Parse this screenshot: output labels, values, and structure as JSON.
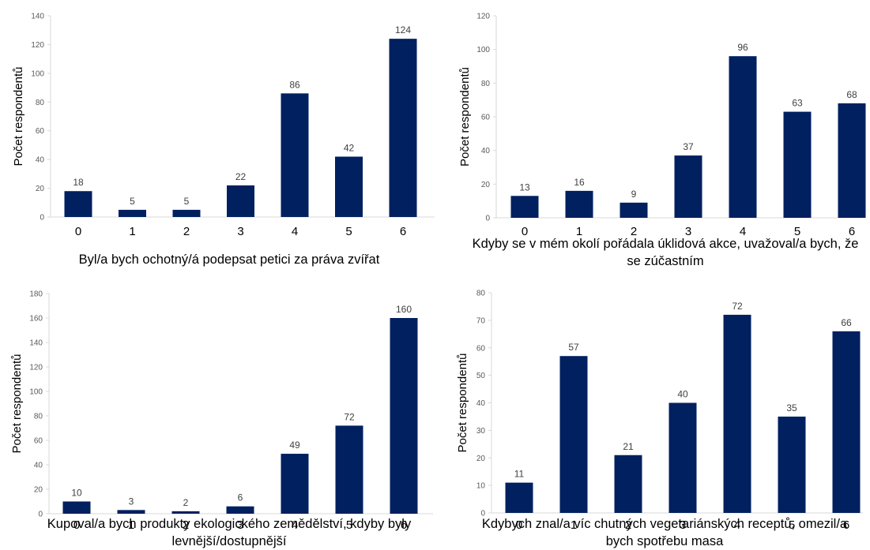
{
  "chart_data": [
    {
      "type": "bar",
      "title": "Byl/a bych ochotný/á podepsat petici za práva zvířat",
      "ylabel": "Počet respondentů",
      "categories": [
        "0",
        "1",
        "2",
        "3",
        "4",
        "5",
        "6"
      ],
      "values": [
        18,
        5,
        5,
        22,
        86,
        42,
        124
      ],
      "ylim": [
        0,
        140
      ],
      "yticks": [
        0,
        20,
        40,
        60,
        80,
        100,
        120,
        140
      ],
      "color": "#002060"
    },
    {
      "type": "bar",
      "title": "Kdyby se v mém okolí pořádala úklidová akce, uvažoval/a bych, že se zúčastním",
      "ylabel": "Počet respondentů",
      "categories": [
        "0",
        "1",
        "2",
        "3",
        "4",
        "5",
        "6"
      ],
      "values": [
        13,
        16,
        9,
        37,
        96,
        63,
        68
      ],
      "ylim": [
        0,
        120
      ],
      "yticks": [
        0,
        20,
        40,
        60,
        80,
        100,
        120
      ],
      "color": "#002060"
    },
    {
      "type": "bar",
      "title": "Kupoval/a bych produkty ekologického zemědělství, kdyby byly levnější/dostupnější",
      "ylabel": "Počet respondentů",
      "categories": [
        "0",
        "1",
        "2",
        "3",
        "4",
        "5",
        "6"
      ],
      "values": [
        10,
        3,
        2,
        6,
        49,
        72,
        160
      ],
      "ylim": [
        0,
        180
      ],
      "yticks": [
        0,
        20,
        40,
        60,
        80,
        100,
        120,
        140,
        160,
        180
      ],
      "color": "#002060"
    },
    {
      "type": "bar",
      "title": "Kdybych znal/a víc chutných vegetariánských receptů, omezil/a bych spotřebu masa",
      "ylabel": "Počet respondentů",
      "categories": [
        "0",
        "1",
        "2",
        "3",
        "4",
        "5",
        "6"
      ],
      "values": [
        11,
        57,
        21,
        40,
        72,
        35,
        66
      ],
      "ylim": [
        0,
        80
      ],
      "yticks": [
        0,
        10,
        20,
        30,
        40,
        50,
        60,
        70,
        80
      ],
      "color": "#002060"
    }
  ]
}
